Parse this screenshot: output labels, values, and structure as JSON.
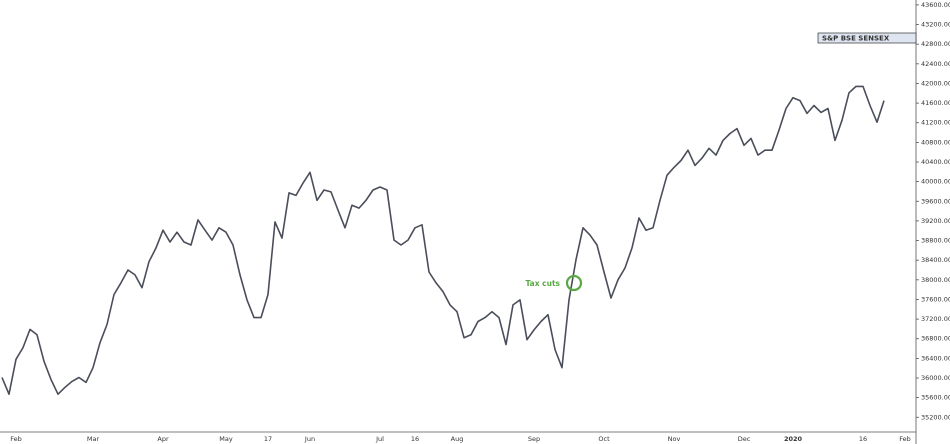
{
  "chart_data": {
    "type": "line",
    "series": [
      {
        "name": "S&P BSE SENSEX",
        "color": "#4a4e5a",
        "values": [
          36010,
          35670,
          36380,
          36620,
          36990,
          36880,
          36340,
          35970,
          35670,
          35810,
          35930,
          36010,
          35910,
          36210,
          36720,
          37090,
          37700,
          37940,
          38200,
          38100,
          37840,
          38370,
          38650,
          39010,
          38770,
          38970,
          38770,
          38710,
          39220,
          39010,
          38810,
          39060,
          38970,
          38710,
          38100,
          37590,
          37230,
          37230,
          37700,
          39180,
          38850,
          39770,
          39720,
          39970,
          40190,
          39620,
          39830,
          39790,
          39420,
          39060,
          39520,
          39460,
          39620,
          39830,
          39890,
          39830,
          38810,
          38710,
          38810,
          39060,
          39120,
          38160,
          37940,
          37760,
          37490,
          37350,
          36820,
          36880,
          37150,
          37230,
          37350,
          37230,
          36680,
          37490,
          37590,
          36780,
          36980,
          37150,
          37290,
          36580,
          36210,
          37590,
          38410,
          39060,
          38910,
          38710,
          38160,
          37630,
          38000,
          38240,
          38650,
          39260,
          39010,
          39060,
          39620,
          40130,
          40290,
          40430,
          40640,
          40330,
          40480,
          40680,
          40540,
          40840,
          40980,
          41080,
          40740,
          40880,
          40540,
          40640,
          40640,
          41050,
          41490,
          41710,
          41650,
          41390,
          41550,
          41410,
          41490,
          40840,
          41250,
          41810,
          41940,
          41940,
          41550,
          41210,
          41650,
          null,
          null,
          null
        ]
      }
    ],
    "categories": [
      null,
      null,
      "Feb",
      null,
      null,
      null,
      null,
      null,
      null,
      null,
      null,
      null,
      null,
      "Mar",
      null,
      null,
      null,
      null,
      null,
      null,
      null,
      null,
      null,
      "Apr",
      null,
      null,
      null,
      null,
      null,
      null,
      null,
      null,
      "May",
      null,
      null,
      null,
      null,
      null,
      "17",
      null,
      null,
      null,
      null,
      null,
      "Jun",
      null,
      null,
      null,
      null,
      null,
      null,
      null,
      null,
      null,
      "Jul",
      null,
      null,
      null,
      null,
      "16",
      null,
      null,
      null,
      null,
      null,
      "Aug",
      null,
      null,
      null,
      null,
      null,
      null,
      null,
      null,
      null,
      null,
      "Sep",
      null,
      null,
      null,
      null,
      null,
      null,
      null,
      null,
      null,
      "Oct",
      null,
      null,
      null,
      null,
      null,
      null,
      null,
      null,
      null,
      "Nov",
      null,
      null,
      null,
      null,
      null,
      null,
      null,
      null,
      null,
      "Dec",
      null,
      null,
      null,
      null,
      null,
      null,
      "2020",
      null,
      null,
      null,
      null,
      null,
      null,
      null,
      null,
      null,
      "16",
      null,
      null,
      null,
      null,
      null,
      "Feb"
    ],
    "ylim": [
      34900,
      43700
    ],
    "yticks": [
      {
        "value": 35200,
        "label": "35200.00"
      },
      {
        "value": 35600,
        "label": "35600.00"
      },
      {
        "value": 36000,
        "label": "36000.00"
      },
      {
        "value": 36400,
        "label": "36400.00"
      },
      {
        "value": 36800,
        "label": "36800.00"
      },
      {
        "value": 37200,
        "label": "37200.00"
      },
      {
        "value": 37600,
        "label": "37600.00"
      },
      {
        "value": 38000,
        "label": "38000.00"
      },
      {
        "value": 38400,
        "label": "38400.00"
      },
      {
        "value": 38800,
        "label": "38800.00"
      },
      {
        "value": 39200,
        "label": "39200.00"
      },
      {
        "value": 39600,
        "label": "39600.00"
      },
      {
        "value": 40000,
        "label": "40000.00"
      },
      {
        "value": 40400,
        "label": "40400.00"
      },
      {
        "value": 40800,
        "label": "40800.00"
      },
      {
        "value": 41200,
        "label": "41200.00"
      },
      {
        "value": 41600,
        "label": "41600.00"
      },
      {
        "value": 42000,
        "label": "42000.00"
      },
      {
        "value": 42400,
        "label": "42400.00"
      },
      {
        "value": 42800,
        "label": "42800.00"
      },
      {
        "value": 43200,
        "label": "43200.00"
      },
      {
        "value": 43600,
        "label": "43600.00"
      }
    ],
    "grid": false,
    "legend": "top-right",
    "annotations": [
      {
        "text": "Tax cuts",
        "color": "#5aa844"
      }
    ]
  }
}
